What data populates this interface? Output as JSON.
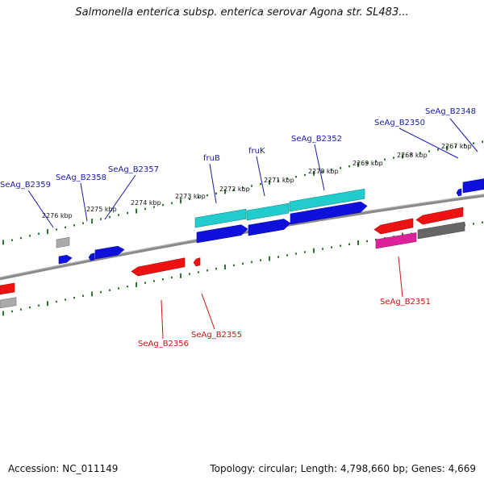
{
  "title": "Salmonella enterica subsp. enterica serovar Agona str. SL483...",
  "footer": {
    "accession": "Accession: NC_011149",
    "summary": "Topology: circular; Length: 4,798,660 bp; Genes: 4,669"
  },
  "colors": {
    "backbone": "#8a8a8a",
    "tick": "#2a7a2a",
    "forward_label": "#1a1aaa",
    "reverse_label": "#cc1111",
    "cds_forward": "#1010dd",
    "cds_reverse": "#ee1111",
    "rna": "#22cccc",
    "pseudo": "#dd2299",
    "other": "#666666"
  },
  "scale_labels": [
    "2276 kbp",
    "2275 kbp",
    "2274 kbp",
    "2273 kbp",
    "2272 kbp",
    "2271 kbp",
    "2270 kbp",
    "2269 kbp",
    "2268 kbp",
    "2267 kbp"
  ],
  "forward_labels": [
    "SeAg_B2359",
    "SeAg_B2358",
    "SeAg_B2357",
    "fruB",
    "fruK",
    "SeAg_B2352",
    "SeAg_B2350",
    "SeAg_B2348"
  ],
  "reverse_labels": [
    "SeAg_B2356",
    "SeAg_B2355",
    "SeAg_B2351"
  ]
}
